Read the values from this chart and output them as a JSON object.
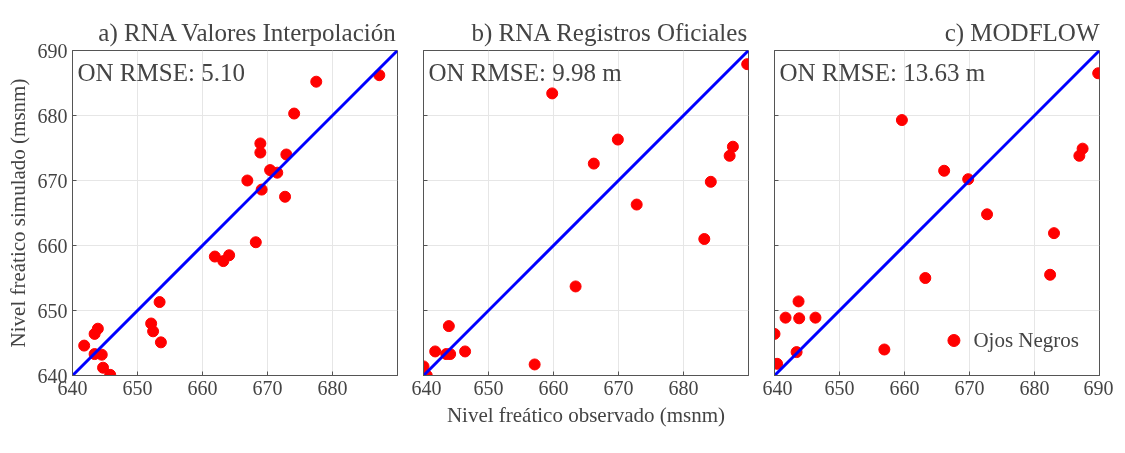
{
  "chart_data": [
    {
      "type": "scatter",
      "title": "a) RNA Valores Interpolación",
      "ylabel": "Nivel freático simulado (msnm)",
      "annotations": [
        "ON RMSE: 5.10"
      ],
      "xlim": [
        640,
        690
      ],
      "ylim": [
        640,
        690
      ],
      "xticks": [
        640,
        650,
        660,
        670,
        680,
        {
          "value": 690,
          "label": null
        }
      ],
      "yticks": [
        640,
        650,
        660,
        670,
        680,
        690
      ],
      "grid": true,
      "series": [
        {
          "marker": "circle",
          "color": "#ff0000",
          "x": [
            641.8,
            643.4,
            643.9,
            643.4,
            644.5,
            644.7,
            645.8,
            652.1,
            652.4,
            653.4,
            653.6,
            661.9,
            663.2,
            664.1,
            668.2,
            666.9,
            668.9,
            668.9,
            669.1,
            670.4,
            671.5,
            672.7,
            672.9,
            674.1,
            677.5,
            687.2
          ],
          "values": [
            644.6,
            646.4,
            647.2,
            643.3,
            643.2,
            641.2,
            640.1,
            648.0,
            646.8,
            651.3,
            645.1,
            658.3,
            657.6,
            658.5,
            660.5,
            670.0,
            675.7,
            674.3,
            668.6,
            671.6,
            671.2,
            667.5,
            674.0,
            680.3,
            685.2,
            686.2
          ]
        },
        {
          "type": "line",
          "color": "#0000ff",
          "x": [
            640,
            690
          ],
          "values": [
            640,
            690
          ]
        }
      ]
    },
    {
      "type": "scatter",
      "title": "b) RNA Registros Oficiales",
      "xlabel": "Nivel freático observado (msnm)",
      "annotations": [
        "ON RMSE: 9.98 m"
      ],
      "xlim": [
        640,
        690
      ],
      "ylim": [
        640,
        690
      ],
      "xticks": [
        640,
        650,
        660,
        670,
        680,
        {
          "value": 690,
          "label": null
        }
      ],
      "yticks": [
        640,
        650,
        660,
        670,
        680,
        690
      ],
      "tick_labels": "x",
      "grid": true,
      "series": [
        {
          "marker": "circle",
          "color": "#ff0000",
          "x": [
            640.0,
            640.5,
            641.8,
            643.9,
            643.5,
            644.1,
            646.4,
            657.1,
            659.8,
            663.4,
            666.2,
            669.9,
            672.8,
            683.2,
            684.2,
            687.1,
            687.6,
            689.8
          ],
          "values": [
            641.4,
            640.0,
            643.7,
            647.6,
            643.3,
            643.3,
            643.7,
            641.7,
            683.4,
            653.7,
            672.6,
            676.3,
            666.3,
            661.0,
            669.8,
            673.8,
            675.2,
            687.9
          ]
        },
        {
          "type": "line",
          "color": "#0000ff",
          "x": [
            640,
            690
          ],
          "values": [
            640,
            690
          ]
        }
      ]
    },
    {
      "type": "scatter",
      "title": "c) MODFLOW",
      "annotations": [
        "ON RMSE: 13.63 m"
      ],
      "xlim": [
        640,
        690
      ],
      "ylim": [
        640,
        690
      ],
      "xticks": [
        640,
        650,
        660,
        670,
        680,
        690
      ],
      "yticks": [
        640,
        650,
        660,
        670,
        680,
        690
      ],
      "tick_labels": "x",
      "grid": true,
      "legend": "bottom right",
      "series": [
        {
          "marker": "circle",
          "name": "Ojos Negros",
          "color": "#ff0000",
          "x": [
            640.0,
            640.4,
            641.7,
            643.4,
            643.7,
            643.8,
            646.3,
            656.9,
            659.6,
            663.2,
            666.1,
            669.8,
            672.7,
            682.4,
            683.0,
            686.9,
            687.4,
            689.8
          ],
          "values": [
            646.4,
            641.8,
            648.9,
            643.6,
            651.4,
            648.8,
            648.9,
            644.0,
            679.3,
            655.0,
            671.5,
            670.2,
            664.8,
            655.5,
            661.9,
            673.8,
            674.9,
            686.5
          ]
        },
        {
          "type": "line",
          "color": "#0000ff",
          "x": [
            640,
            690
          ],
          "values": [
            640,
            690
          ]
        }
      ]
    }
  ]
}
